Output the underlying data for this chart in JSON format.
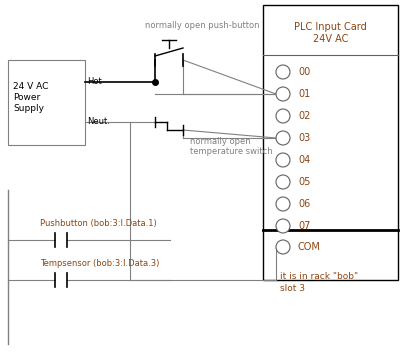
{
  "background_color": "#ffffff",
  "figsize": [
    4.0,
    3.52
  ],
  "dpi": 100,
  "plc_title": "PLC Input Card\n24V AC",
  "plc_title_color": "#8B4513",
  "plc_channels": [
    "00",
    "01",
    "02",
    "03",
    "04",
    "05",
    "06",
    "07"
  ],
  "channel_color": "#8B4513",
  "com_label": "COM",
  "com_color": "#8B4513",
  "power_text": "24 V AC\nPower\nSupply",
  "hot_label": "Hot",
  "neut_label": "Neut.",
  "wire_color": "#808080",
  "black_color": "#000000",
  "pushbutton_label": "normally open push-button",
  "temp_switch_label": "normally open\ntemperature switch",
  "annotation_color": "#808080",
  "ladder_pushbutton_label": "Pushbutton (bob:3:I.Data.1)",
  "ladder_temp_label": "Tempsensor (bob:3:I.Data.3)",
  "rack_note": "it is in rack \"bob\"\nslot 3",
  "rack_note_color": "#8B4513"
}
